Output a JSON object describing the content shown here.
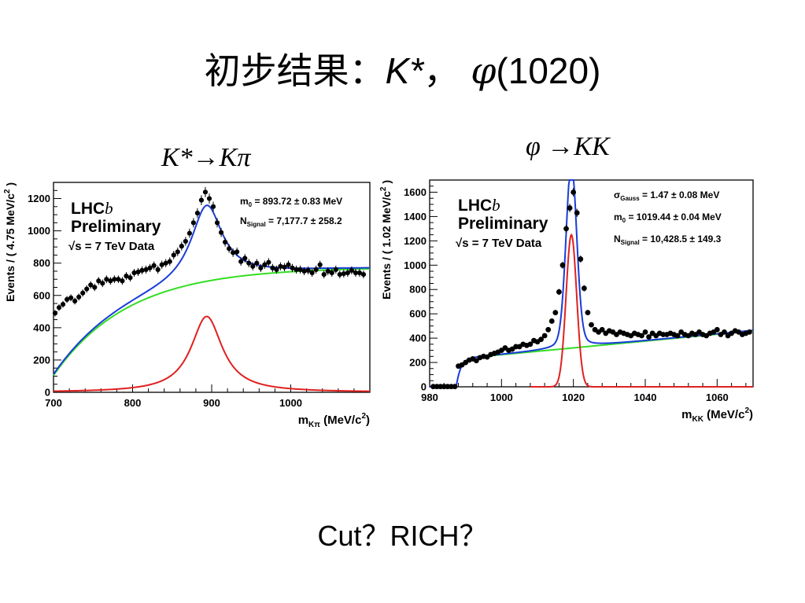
{
  "slide": {
    "title_cn": "初步结果：",
    "title_kstar": "K*",
    "title_sep": "，",
    "title_phi": "φ",
    "title_mass": "(1020)",
    "left_caption": "K*→Kπ",
    "right_caption": "φ →KK",
    "bottom_note": "Cut？RICH？"
  },
  "chart_data": [
    {
      "type": "scatter",
      "experiment": "LHCb",
      "experiment_logo_base": "LHC",
      "experiment_logo_suffix": "b",
      "status": "Preliminary",
      "energy_label": "√s = 7 TeV Data",
      "params": [
        {
          "label": "m",
          "sub": "0",
          "text": " = 893.72 ± 0.83 MeV"
        },
        {
          "label": "N",
          "sub": "Signal",
          "text": " = 7,177.7 ± 258.2"
        }
      ],
      "xlabel_main": "m",
      "xlabel_sub": "Kπ",
      "xlabel_unit": " (MeV/c",
      "xlabel_sup": "2",
      "xlabel_end": ")",
      "ylabel": "Events / ( 4.75 MeV/c",
      "ylabel_sup": "2",
      "ylabel_end": " )",
      "xlim": [
        700,
        1100
      ],
      "ylim": [
        0,
        1300
      ],
      "x_ticks": [
        700,
        800,
        900,
        1000
      ],
      "y_ticks": [
        0,
        200,
        400,
        600,
        800,
        1000,
        1200
      ],
      "model": {
        "m0": 893.7,
        "gamma": 48,
        "sig_amp": 470,
        "bkg_plateau": 745,
        "bkg_scale": 95,
        "bkg_ref": 690
      },
      "data_points": [
        [
          702,
          490
        ],
        [
          707,
          525
        ],
        [
          712,
          545
        ],
        [
          717,
          575
        ],
        [
          722,
          585
        ],
        [
          727,
          565
        ],
        [
          732,
          590
        ],
        [
          737,
          615
        ],
        [
          742,
          640
        ],
        [
          747,
          665
        ],
        [
          752,
          650
        ],
        [
          757,
          690
        ],
        [
          762,
          675
        ],
        [
          767,
          700
        ],
        [
          772,
          690
        ],
        [
          777,
          700
        ],
        [
          782,
          700
        ],
        [
          787,
          690
        ],
        [
          792,
          720
        ],
        [
          797,
          710
        ],
        [
          802,
          740
        ],
        [
          807,
          745
        ],
        [
          812,
          755
        ],
        [
          817,
          760
        ],
        [
          822,
          770
        ],
        [
          827,
          785
        ],
        [
          832,
          760
        ],
        [
          837,
          790
        ],
        [
          842,
          800
        ],
        [
          847,
          810
        ],
        [
          852,
          850
        ],
        [
          857,
          870
        ],
        [
          862,
          905
        ],
        [
          867,
          935
        ],
        [
          872,
          985
        ],
        [
          877,
          1050
        ],
        [
          882,
          1110
        ],
        [
          887,
          1190
        ],
        [
          892,
          1240
        ],
        [
          897,
          1200
        ],
        [
          902,
          1150
        ],
        [
          907,
          1050
        ],
        [
          912,
          990
        ],
        [
          917,
          930
        ],
        [
          922,
          890
        ],
        [
          927,
          865
        ],
        [
          932,
          870
        ],
        [
          937,
          810
        ],
        [
          942,
          830
        ],
        [
          947,
          800
        ],
        [
          952,
          780
        ],
        [
          957,
          800
        ],
        [
          962,
          770
        ],
        [
          967,
          790
        ],
        [
          972,
          805
        ],
        [
          977,
          770
        ],
        [
          982,
          760
        ],
        [
          987,
          780
        ],
        [
          992,
          775
        ],
        [
          997,
          790
        ],
        [
          1002,
          770
        ],
        [
          1007,
          760
        ],
        [
          1012,
          760
        ],
        [
          1017,
          750
        ],
        [
          1022,
          755
        ],
        [
          1027,
          740
        ],
        [
          1032,
          760
        ],
        [
          1037,
          790
        ],
        [
          1042,
          730
        ],
        [
          1047,
          750
        ],
        [
          1052,
          740
        ],
        [
          1057,
          760
        ],
        [
          1062,
          730
        ],
        [
          1067,
          735
        ],
        [
          1072,
          740
        ],
        [
          1077,
          755
        ],
        [
          1082,
          740
        ],
        [
          1087,
          740
        ],
        [
          1092,
          730
        ]
      ]
    },
    {
      "type": "scatter",
      "experiment": "LHCb",
      "experiment_logo_base": "LHC",
      "experiment_logo_suffix": "b",
      "status": "Preliminary",
      "energy_label": "√s = 7 TeV Data",
      "params": [
        {
          "label": "σ",
          "sub": "Gauss",
          "text": " = 1.47 ± 0.08 MeV"
        },
        {
          "label": "m",
          "sub": "0",
          "text": " = 1019.44 ± 0.04 MeV"
        },
        {
          "label": "N",
          "sub": "Signal",
          "text": " = 10,428.5 ± 149.3"
        }
      ],
      "xlabel_main": "m",
      "xlabel_sub": "KK",
      "xlabel_unit": " (MeV/c",
      "xlabel_sup": "2",
      "xlabel_end": ")",
      "ylabel": "Events / ( 1.02 MeV/c",
      "ylabel_sup": "2",
      "ylabel_end": " )",
      "xlim": [
        980,
        1070
      ],
      "ylim": [
        0,
        1700
      ],
      "x_ticks": [
        980,
        1000,
        1020,
        1040,
        1060
      ],
      "y_ticks": [
        0,
        200,
        400,
        600,
        800,
        1000,
        1200,
        1400,
        1600
      ],
      "model": {
        "threshold": 987.4,
        "m0": 1019.44,
        "sigma": 1.47,
        "sig_amp": 1250,
        "bkg_base": 230,
        "bkg_slope": 2.83,
        "tail_amp": 280,
        "tail_width": 3.8
      },
      "data_points": [
        [
          981,
          2
        ],
        [
          982,
          2
        ],
        [
          983,
          2
        ],
        [
          984,
          2
        ],
        [
          985,
          2
        ],
        [
          986,
          2
        ],
        [
          987,
          2
        ],
        [
          988,
          170
        ],
        [
          989,
          180
        ],
        [
          990,
          200
        ],
        [
          991,
          220
        ],
        [
          992,
          230
        ],
        [
          993,
          215
        ],
        [
          994,
          240
        ],
        [
          995,
          250
        ],
        [
          996,
          245
        ],
        [
          997,
          265
        ],
        [
          998,
          275
        ],
        [
          999,
          285
        ],
        [
          1000,
          300
        ],
        [
          1001,
          320
        ],
        [
          1002,
          300
        ],
        [
          1003,
          310
        ],
        [
          1004,
          330
        ],
        [
          1005,
          330
        ],
        [
          1006,
          350
        ],
        [
          1007,
          340
        ],
        [
          1008,
          350
        ],
        [
          1009,
          380
        ],
        [
          1010,
          370
        ],
        [
          1011,
          390
        ],
        [
          1012,
          420
        ],
        [
          1013,
          470
        ],
        [
          1014,
          540
        ],
        [
          1015,
          610
        ],
        [
          1016,
          780
        ],
        [
          1017,
          1000
        ],
        [
          1018,
          1300
        ],
        [
          1019,
          1470
        ],
        [
          1020,
          1600
        ],
        [
          1021,
          1430
        ],
        [
          1022,
          1050
        ],
        [
          1023,
          810
        ],
        [
          1024,
          610
        ],
        [
          1025,
          510
        ],
        [
          1026,
          470
        ],
        [
          1027,
          450
        ],
        [
          1028,
          470
        ],
        [
          1029,
          440
        ],
        [
          1030,
          460
        ],
        [
          1031,
          450
        ],
        [
          1032,
          430
        ],
        [
          1033,
          450
        ],
        [
          1034,
          440
        ],
        [
          1035,
          430
        ],
        [
          1036,
          420
        ],
        [
          1037,
          440
        ],
        [
          1038,
          430
        ],
        [
          1039,
          420
        ],
        [
          1040,
          450
        ],
        [
          1041,
          410
        ],
        [
          1042,
          440
        ],
        [
          1043,
          420
        ],
        [
          1044,
          440
        ],
        [
          1045,
          430
        ],
        [
          1046,
          430
        ],
        [
          1047,
          440
        ],
        [
          1048,
          430
        ],
        [
          1049,
          420
        ],
        [
          1050,
          450
        ],
        [
          1051,
          430
        ],
        [
          1052,
          420
        ],
        [
          1053,
          440
        ],
        [
          1054,
          430
        ],
        [
          1055,
          450
        ],
        [
          1056,
          430
        ],
        [
          1057,
          420
        ],
        [
          1058,
          440
        ],
        [
          1059,
          450
        ],
        [
          1060,
          470
        ],
        [
          1061,
          430
        ],
        [
          1062,
          450
        ],
        [
          1063,
          420
        ],
        [
          1064,
          440
        ],
        [
          1065,
          460
        ],
        [
          1066,
          450
        ],
        [
          1067,
          430
        ],
        [
          1068,
          440
        ],
        [
          1069,
          450
        ]
      ]
    }
  ]
}
